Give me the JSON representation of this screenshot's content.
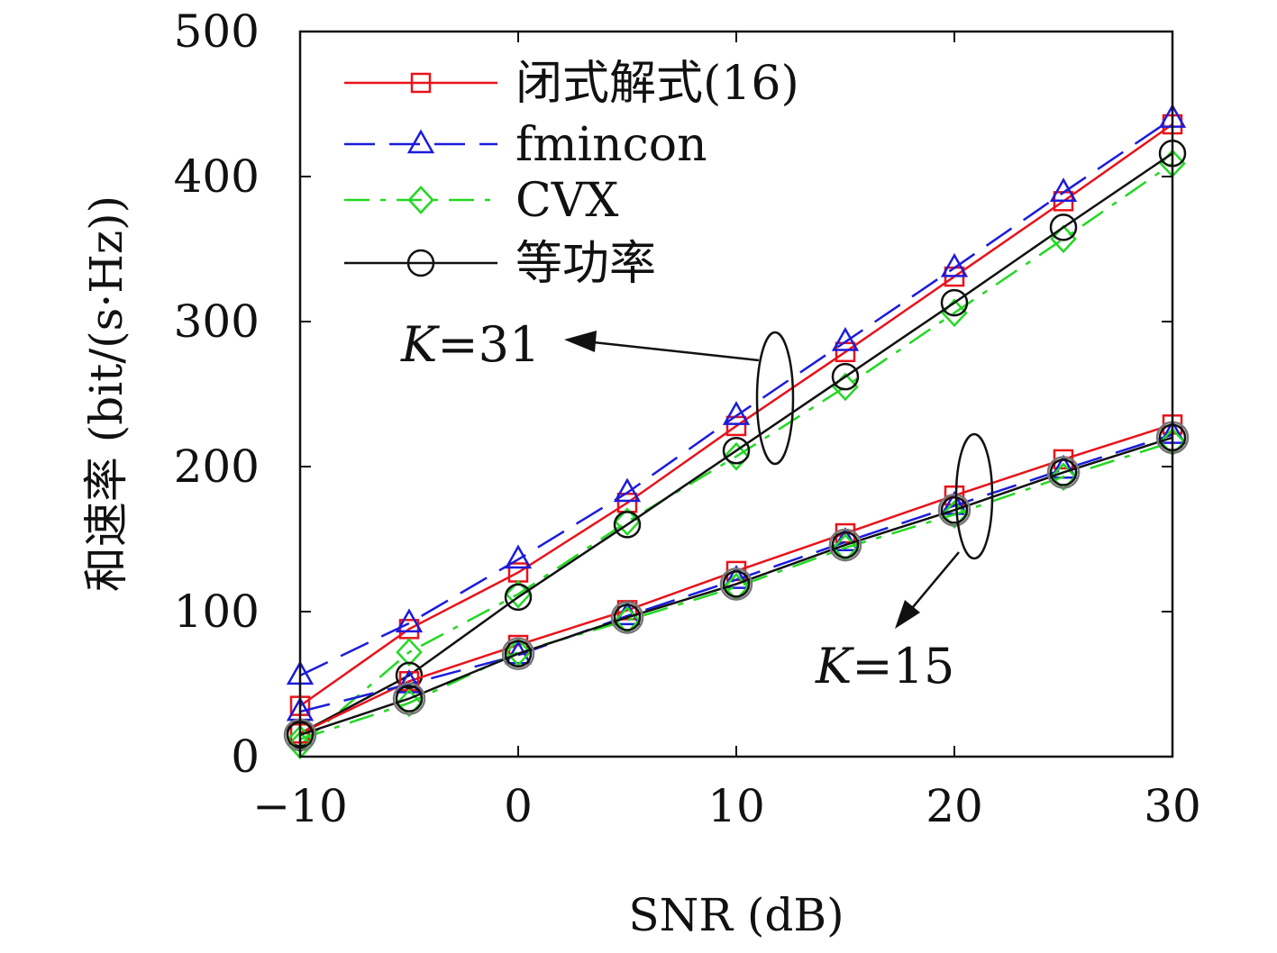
{
  "chart_data": {
    "type": "line",
    "title": "",
    "xlabel": "SNR (dB)",
    "ylabel": "和速率 (bit/(s·Hz))",
    "xlim": [
      -10,
      30
    ],
    "ylim": [
      0,
      500
    ],
    "x": [
      -10,
      -5,
      0,
      5,
      10,
      15,
      20,
      25,
      30
    ],
    "xticks": [
      -10,
      0,
      10,
      20,
      30
    ],
    "xtick_labels": [
      "−10",
      "0",
      "10",
      "20",
      "30"
    ],
    "yticks": [
      0,
      100,
      200,
      300,
      400,
      500
    ],
    "ytick_labels": [
      "0",
      "100",
      "200",
      "300",
      "400",
      "500"
    ],
    "grid": false,
    "legend_position": "top-left",
    "legend": [
      {
        "label": "闭式解式(16)",
        "color": "#e8131b",
        "dash": "solid",
        "marker": "square"
      },
      {
        "label": "fmincon",
        "color": "#1b1bdc",
        "dash": "dashed",
        "marker": "triangle"
      },
      {
        "label": "CVX",
        "color": "#22d822",
        "dash": "dashdot",
        "marker": "diamond"
      },
      {
        "label": "等功率",
        "color": "#111111",
        "dash": "solid",
        "marker": "circle"
      }
    ],
    "groups": [
      {
        "label_var": "K",
        "label_eq": "=31",
        "series": [
          {
            "legend_index": 0,
            "values": [
              35,
              88,
              127,
              175,
              228,
              279,
              331,
              383,
              436
            ]
          },
          {
            "legend_index": 1,
            "values": [
              56,
              92,
              136,
              182,
              235,
              286,
              337,
              389,
              440
            ]
          },
          {
            "legend_index": 2,
            "values": [
              8,
              72,
              112,
              162,
              207,
              255,
              306,
              357,
              409
            ]
          },
          {
            "legend_index": 3,
            "values": [
              16,
              56,
              110,
              160,
              211,
              262,
              313,
              365,
              416
            ]
          }
        ]
      },
      {
        "label_var": "K",
        "label_eq": "=15",
        "series": [
          {
            "legend_index": 0,
            "values": [
              16,
              52,
              77,
              101,
              128,
              154,
              180,
              205,
              229
            ]
          },
          {
            "legend_index": 1,
            "values": [
              31,
              50,
              70,
              97,
              122,
              148,
              173,
              198,
              222
            ]
          },
          {
            "legend_index": 2,
            "values": [
              12,
              37,
              72,
              94,
              117,
              144,
              167,
              193,
              217
            ]
          },
          {
            "legend_index": 3,
            "values": [
              15,
              40,
              71,
              96,
              119,
              146,
              170,
              196,
              220
            ]
          }
        ]
      }
    ]
  }
}
